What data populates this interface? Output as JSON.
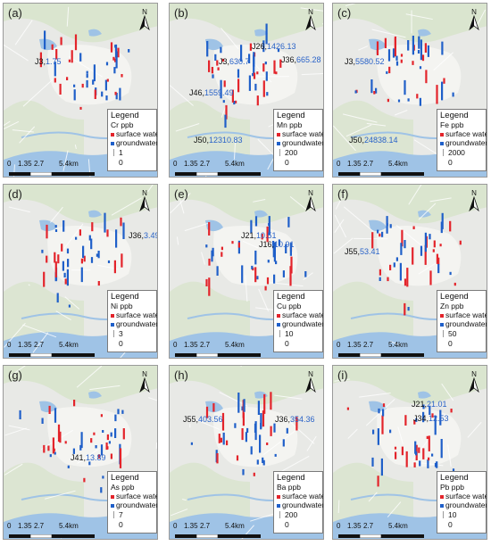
{
  "colors": {
    "surface_water": "#e3242b",
    "groundwater": "#1f5fc9",
    "land": "#e8e9e6",
    "water": "#9fc3e6",
    "green": "#d4e3c4",
    "urban": "#f5f5f2"
  },
  "legend_labels": {
    "title": "Legend",
    "surface_water": "surface water",
    "groundwater": "groundwater"
  },
  "scale_bar": {
    "ticks": [
      "0",
      "1.35",
      "2.7",
      "5.4km"
    ]
  },
  "north_arrow_letter": "N",
  "panels": [
    {
      "label": "(a)",
      "element": "Cr ppb",
      "scale_value": "1",
      "scale_zero": "0",
      "annotations": [
        {
          "site": "J3,",
          "value": "1.75"
        }
      ]
    },
    {
      "label": "(b)",
      "element": "Mn ppb",
      "scale_value": "200",
      "scale_zero": "0",
      "annotations": [
        {
          "site": "J26,",
          "value": "1426.13"
        },
        {
          "site": "J3,",
          "value": "630.7"
        },
        {
          "site": "J36,",
          "value": "665.28"
        },
        {
          "site": "J46,",
          "value": "1559.49"
        },
        {
          "site": "J50,",
          "value": "12310.83"
        }
      ]
    },
    {
      "label": "(c)",
      "element": "Fe ppb",
      "scale_value": "2000",
      "scale_zero": "0",
      "annotations": [
        {
          "site": "J3,",
          "value": "5580.52"
        },
        {
          "site": "J50,",
          "value": "24838.14"
        }
      ]
    },
    {
      "label": "(d)",
      "element": "Ni ppb",
      "scale_value": "3",
      "scale_zero": "0",
      "annotations": [
        {
          "site": "J36,",
          "value": "3.49"
        }
      ]
    },
    {
      "label": "(e)",
      "element": "Cu ppb",
      "scale_value": "10",
      "scale_zero": "0",
      "annotations": [
        {
          "site": "J21,",
          "value": "10.51"
        },
        {
          "site": "J16,",
          "value": "10.91"
        }
      ]
    },
    {
      "label": "(f)",
      "element": "Zn ppb",
      "scale_value": "50",
      "scale_zero": "0",
      "annotations": [
        {
          "site": "J55,",
          "value": "53.41"
        }
      ]
    },
    {
      "label": "(g)",
      "element": "As ppb",
      "scale_value": "7",
      "scale_zero": "0",
      "annotations": [
        {
          "site": "J41,",
          "value": "13.89"
        }
      ]
    },
    {
      "label": "(h)",
      "element": "Ba ppb",
      "scale_value": "200",
      "scale_zero": "0",
      "annotations": [
        {
          "site": "J55,",
          "value": "403.56"
        },
        {
          "site": "J36,",
          "value": "354.36"
        }
      ]
    },
    {
      "label": "(i)",
      "element": "Pb ppb",
      "scale_value": "10",
      "scale_zero": "0",
      "annotations": [
        {
          "site": "J21,",
          "value": "21.01"
        },
        {
          "site": "J34,",
          "value": "12.53"
        }
      ]
    }
  ]
}
